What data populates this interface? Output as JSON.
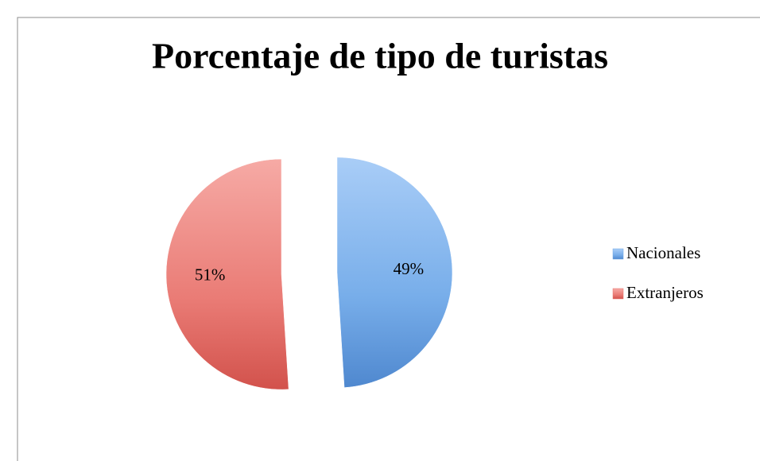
{
  "chart_data": {
    "type": "pie",
    "title": "Porcentaje de tipo de turistas",
    "categories": [
      "Nacionales",
      "Extranjeros"
    ],
    "values": [
      49,
      51
    ],
    "value_labels": [
      "49%",
      "51%"
    ],
    "colors": [
      "#6fa6e6",
      "#e8726c"
    ],
    "legend": "right"
  }
}
